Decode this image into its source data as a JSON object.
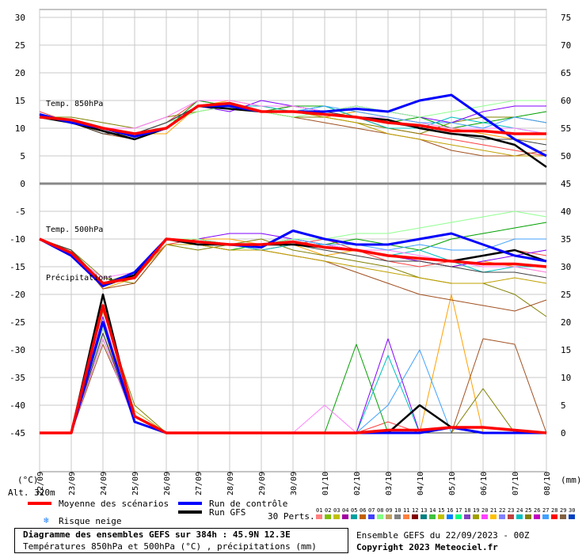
{
  "chart_data": {
    "type": "line",
    "x_dates": [
      "22/09",
      "23/09",
      "24/09",
      "25/09",
      "26/09",
      "27/09",
      "28/09",
      "29/09",
      "30/09",
      "01/10",
      "02/10",
      "03/10",
      "04/10",
      "05/10",
      "06/10",
      "07/10",
      "08/10"
    ],
    "y_left_ticks": [
      "30",
      "25",
      "20",
      "15",
      "10",
      "5",
      "0",
      "-5",
      "-10",
      "-15",
      "-20",
      "-25",
      "-30",
      "-35",
      "-40",
      "-45"
    ],
    "y_right_ticks": [
      "75",
      "70",
      "65",
      "60",
      "55",
      "50",
      "45",
      "40",
      "35",
      "30",
      "25",
      "20",
      "15",
      "10",
      "5",
      "0"
    ],
    "y_left_unit": "(°C)",
    "y_right_unit": "(mm)",
    "alt": "Alt. 320m",
    "panel_labels": {
      "t850": "Temp. 850hPa",
      "t500": "Temp. 500hPa",
      "precip": "Précipitations"
    },
    "series": [
      {
        "name": "Moyenne des scénarios",
        "color": "#ff0000",
        "t850": [
          12,
          11.5,
          10,
          9,
          10,
          14,
          14.5,
          13,
          13,
          12.5,
          12,
          11,
          10.5,
          9.5,
          9.5,
          9,
          9
        ],
        "t500": [
          -10,
          -12.5,
          -18,
          -17,
          -10,
          -10.5,
          -11,
          -11,
          -10.5,
          -11.5,
          -12,
          -13,
          -13.5,
          -14,
          -14.5,
          -14.5,
          -15
        ],
        "precip": [
          0,
          0,
          23,
          3,
          0,
          0,
          0,
          0,
          0,
          0,
          0,
          0.5,
          0.5,
          1,
          1,
          0.5,
          0
        ]
      },
      {
        "name": "Run de contrôle",
        "color": "#0000ff",
        "t850": [
          12.5,
          11,
          10,
          8.5,
          10,
          14,
          14,
          13,
          13,
          13,
          13.5,
          13,
          15,
          16,
          12,
          8,
          5
        ],
        "t500": [
          -10,
          -13,
          -18.5,
          -16,
          -10,
          -10.5,
          -11,
          -11.5,
          -8.5,
          -10,
          -11,
          -11,
          -10,
          -9,
          -11,
          -13,
          -14
        ],
        "precip": [
          0,
          0,
          20,
          2,
          0,
          0,
          0,
          0,
          0,
          0,
          0,
          0,
          0,
          1,
          0,
          0,
          0
        ]
      },
      {
        "name": "Run GFS",
        "color": "#000000",
        "t850": [
          12,
          11,
          9.5,
          8,
          10,
          14,
          13.5,
          13,
          13,
          12.5,
          12,
          11.5,
          10,
          9,
          8.5,
          7,
          3
        ],
        "t500": [
          -10,
          -12.5,
          -18.5,
          -16.5,
          -10,
          -11,
          -11,
          -11,
          -11,
          -11.5,
          -12,
          -13,
          -13.5,
          -14,
          -13,
          -12,
          -14
        ],
        "precip": [
          0,
          0,
          25,
          2,
          0,
          0,
          0,
          0,
          0,
          0,
          0,
          0,
          5,
          1,
          0,
          0,
          0
        ]
      }
    ],
    "members": [
      {
        "color": "#ff4040",
        "t850": [
          13,
          11,
          10,
          9,
          11,
          15,
          14,
          13,
          14,
          13,
          12,
          10,
          9,
          8,
          7,
          6,
          5
        ],
        "t500": [
          -10,
          -13,
          -18,
          -16,
          -11,
          -10,
          -11,
          -12,
          -11,
          -10,
          -12,
          -14,
          -15,
          -14,
          -13,
          -12,
          -13
        ],
        "precip": [
          0,
          0,
          18,
          3,
          0,
          0,
          0,
          0,
          0,
          0,
          0,
          2,
          0,
          0,
          0,
          0,
          0
        ]
      },
      {
        "color": "#ffa000",
        "t850": [
          12,
          11,
          9,
          9,
          9,
          14,
          15,
          14,
          13,
          12,
          13,
          12,
          11,
          10,
          9,
          8,
          8
        ],
        "t500": [
          -10,
          -12,
          -19,
          -17,
          -10,
          -10,
          -10,
          -11,
          -11,
          -13,
          -12,
          -13,
          -14,
          -15,
          -14,
          -15,
          -16
        ],
        "precip": [
          0,
          0,
          19,
          2,
          0,
          0,
          0,
          0,
          0,
          0,
          0,
          0,
          0,
          25,
          0,
          0,
          0
        ]
      },
      {
        "color": "#808000",
        "t850": [
          12,
          12,
          11,
          10,
          12,
          13,
          14,
          13,
          12,
          12,
          11,
          10,
          9,
          11,
          12,
          12,
          11
        ],
        "t500": [
          -10,
          -12,
          -17,
          -18,
          -11,
          -12,
          -11,
          -10,
          -12,
          -13,
          -14,
          -15,
          -17,
          -18,
          -18,
          -20,
          -24
        ],
        "precip": [
          0,
          0,
          22,
          5,
          0,
          0,
          0,
          0,
          0,
          0,
          0,
          0,
          0,
          0,
          8,
          0,
          0
        ]
      },
      {
        "color": "#00a000",
        "t850": [
          12,
          11,
          10,
          8,
          10,
          15,
          14,
          13,
          14,
          14,
          12,
          11,
          12,
          10,
          11,
          12,
          13
        ],
        "t500": [
          -10,
          -13,
          -18,
          -17,
          -10,
          -11,
          -12,
          -11,
          -10,
          -11,
          -10,
          -11,
          -12,
          -10,
          -9,
          -8,
          -7
        ],
        "precip": [
          0,
          0,
          17,
          2,
          0,
          0,
          0,
          0,
          0,
          0,
          16,
          0,
          0,
          0,
          0,
          0,
          0
        ]
      },
      {
        "color": "#00c0c0",
        "t850": [
          12,
          11,
          10,
          9,
          10,
          14,
          14,
          14,
          13,
          14,
          12,
          10,
          10,
          12,
          11,
          10,
          9
        ],
        "t500": [
          -10,
          -12,
          -18,
          -16,
          -10,
          -10,
          -11,
          -12,
          -11,
          -11,
          -12,
          -13,
          -12,
          -14,
          -16,
          -15,
          -15
        ],
        "precip": [
          0,
          0,
          20,
          3,
          0,
          0,
          0,
          0,
          0,
          0,
          0,
          14,
          0,
          0,
          0,
          0,
          0
        ]
      },
      {
        "color": "#8000ff",
        "t850": [
          12,
          11,
          10,
          9,
          11,
          14,
          13,
          15,
          14,
          13,
          14,
          13,
          12,
          11,
          13,
          14,
          14
        ],
        "t500": [
          -10,
          -12,
          -18,
          -17,
          -10,
          -10,
          -9,
          -9,
          -10,
          -11,
          -12,
          -13,
          -14,
          -15,
          -14,
          -13,
          -12
        ],
        "precip": [
          0,
          0,
          21,
          2,
          0,
          0,
          0,
          0,
          0,
          0,
          0,
          17,
          0,
          0,
          0,
          0,
          0
        ]
      },
      {
        "color": "#a05020",
        "t850": [
          12,
          11,
          9,
          8,
          10,
          14,
          14,
          13,
          12,
          11,
          10,
          9,
          8,
          6,
          5,
          5,
          6
        ],
        "t500": [
          -10,
          -12,
          -19,
          -18,
          -11,
          -11,
          -12,
          -12,
          -13,
          -14,
          -16,
          -18,
          -20,
          -21,
          -22,
          -23,
          -21
        ],
        "precip": [
          0,
          0,
          16,
          3,
          0,
          0,
          0,
          0,
          0,
          0,
          0,
          0,
          0,
          0,
          17,
          16,
          0
        ]
      },
      {
        "color": "#ff80ff",
        "t850": [
          12,
          11,
          10,
          10,
          12,
          15,
          15,
          14,
          14,
          13,
          12,
          12,
          11,
          10,
          10,
          10,
          9
        ],
        "t500": [
          -10,
          -13,
          -17,
          -16,
          -10,
          -10,
          -11,
          -11,
          -10,
          -11,
          -12,
          -12,
          -13,
          -14,
          -15,
          -15,
          -16
        ],
        "precip": [
          0,
          0,
          17,
          2,
          0,
          0,
          0,
          0,
          0,
          5,
          0,
          0,
          0,
          0,
          0,
          0,
          0
        ]
      },
      {
        "color": "#40a0ff",
        "t850": [
          12,
          11,
          10,
          9,
          11,
          14,
          14,
          13,
          13,
          14,
          13,
          12,
          11,
          11,
          10,
          12,
          11
        ],
        "t500": [
          -10,
          -12,
          -18,
          -17,
          -10,
          -10,
          -11,
          -11,
          -10,
          -11,
          -11,
          -12,
          -11,
          -12,
          -12,
          -10,
          -10
        ],
        "precip": [
          0,
          0,
          18,
          2,
          0,
          0,
          0,
          0,
          0,
          0,
          0,
          5,
          15,
          0,
          0,
          0,
          0
        ]
      },
      {
        "color": "#90ff90",
        "t850": [
          12,
          11,
          10,
          9,
          11,
          13,
          14,
          13,
          12,
          13,
          14,
          13,
          12,
          13,
          14,
          15,
          15
        ],
        "t500": [
          -10,
          -12,
          -18,
          -16,
          -10,
          -10,
          -11,
          -11,
          -10,
          -10,
          -9,
          -9,
          -8,
          -7,
          -6,
          -5,
          -6
        ],
        "precip": [
          0,
          0,
          19,
          3,
          0,
          0,
          0,
          0,
          0,
          0,
          0,
          0,
          0,
          0,
          0,
          0,
          0
        ]
      },
      {
        "color": "#c0a000",
        "t850": [
          12,
          11,
          10,
          8,
          10,
          14,
          14,
          13,
          13,
          12,
          11,
          9,
          8,
          7,
          6,
          5,
          5
        ],
        "t500": [
          -10,
          -12,
          -18,
          -17,
          -11,
          -11,
          -12,
          -12,
          -13,
          -14,
          -15,
          -16,
          -17,
          -18,
          -18,
          -17,
          -18
        ],
        "precip": [
          0,
          0,
          20,
          4,
          0,
          0,
          0,
          0,
          0,
          0,
          0,
          0,
          0,
          0,
          0,
          0,
          0
        ]
      },
      {
        "color": "#404040",
        "t850": [
          12,
          11,
          9,
          9,
          11,
          14,
          14,
          13,
          13,
          13,
          12,
          11,
          10,
          9,
          8,
          8,
          7
        ],
        "t500": [
          -10,
          -12,
          -18,
          -16,
          -10,
          -11,
          -11,
          -11,
          -11,
          -12,
          -13,
          -14,
          -14,
          -15,
          -16,
          -16,
          -17
        ],
        "precip": [
          0,
          0,
          18,
          2,
          0,
          0,
          0,
          0,
          0,
          0,
          0,
          0,
          0,
          0,
          0,
          0,
          0
        ]
      }
    ]
  },
  "legend": {
    "mean": "Moyenne des scénarios",
    "control": "Run de contrôle",
    "gfs": "Run GFS",
    "snow": "Risque neige",
    "perts": "30 Perts.",
    "pert_numbers": [
      "01",
      "02",
      "03",
      "04",
      "05",
      "06",
      "07",
      "08",
      "09",
      "10",
      "11",
      "12",
      "13",
      "14",
      "15",
      "16",
      "17",
      "18",
      "19",
      "20",
      "21",
      "22",
      "23",
      "24",
      "25",
      "26",
      "27",
      "28",
      "29",
      "30"
    ],
    "pert_colors": [
      "#ff8080",
      "#80c000",
      "#c0c000",
      "#a000a0",
      "#00a0a0",
      "#c06000",
      "#4040ff",
      "#80ff80",
      "#c0a060",
      "#808080",
      "#ff8040",
      "#800000",
      "#008080",
      "#40c040",
      "#c0c000",
      "#0080ff",
      "#00ff80",
      "#8040c0",
      "#a0a000",
      "#ff40ff",
      "#ffc000",
      "#8080ff",
      "#c04040",
      "#00c0c0",
      "#808000",
      "#c000c0",
      "#40a0ff",
      "#ff0000",
      "#806040",
      "#0040c0"
    ]
  },
  "title": {
    "line1": "Diagramme des ensembles GEFS sur 384h : 45.9N 12.3E",
    "line2": "Températures 850hPa et 500hPa (°C) , précipitations (mm)"
  },
  "footer": {
    "ensemble": "Ensemble GEFS du 22/09/2023 - 00Z",
    "copyright": "Copyright 2023 Meteociel.fr"
  }
}
